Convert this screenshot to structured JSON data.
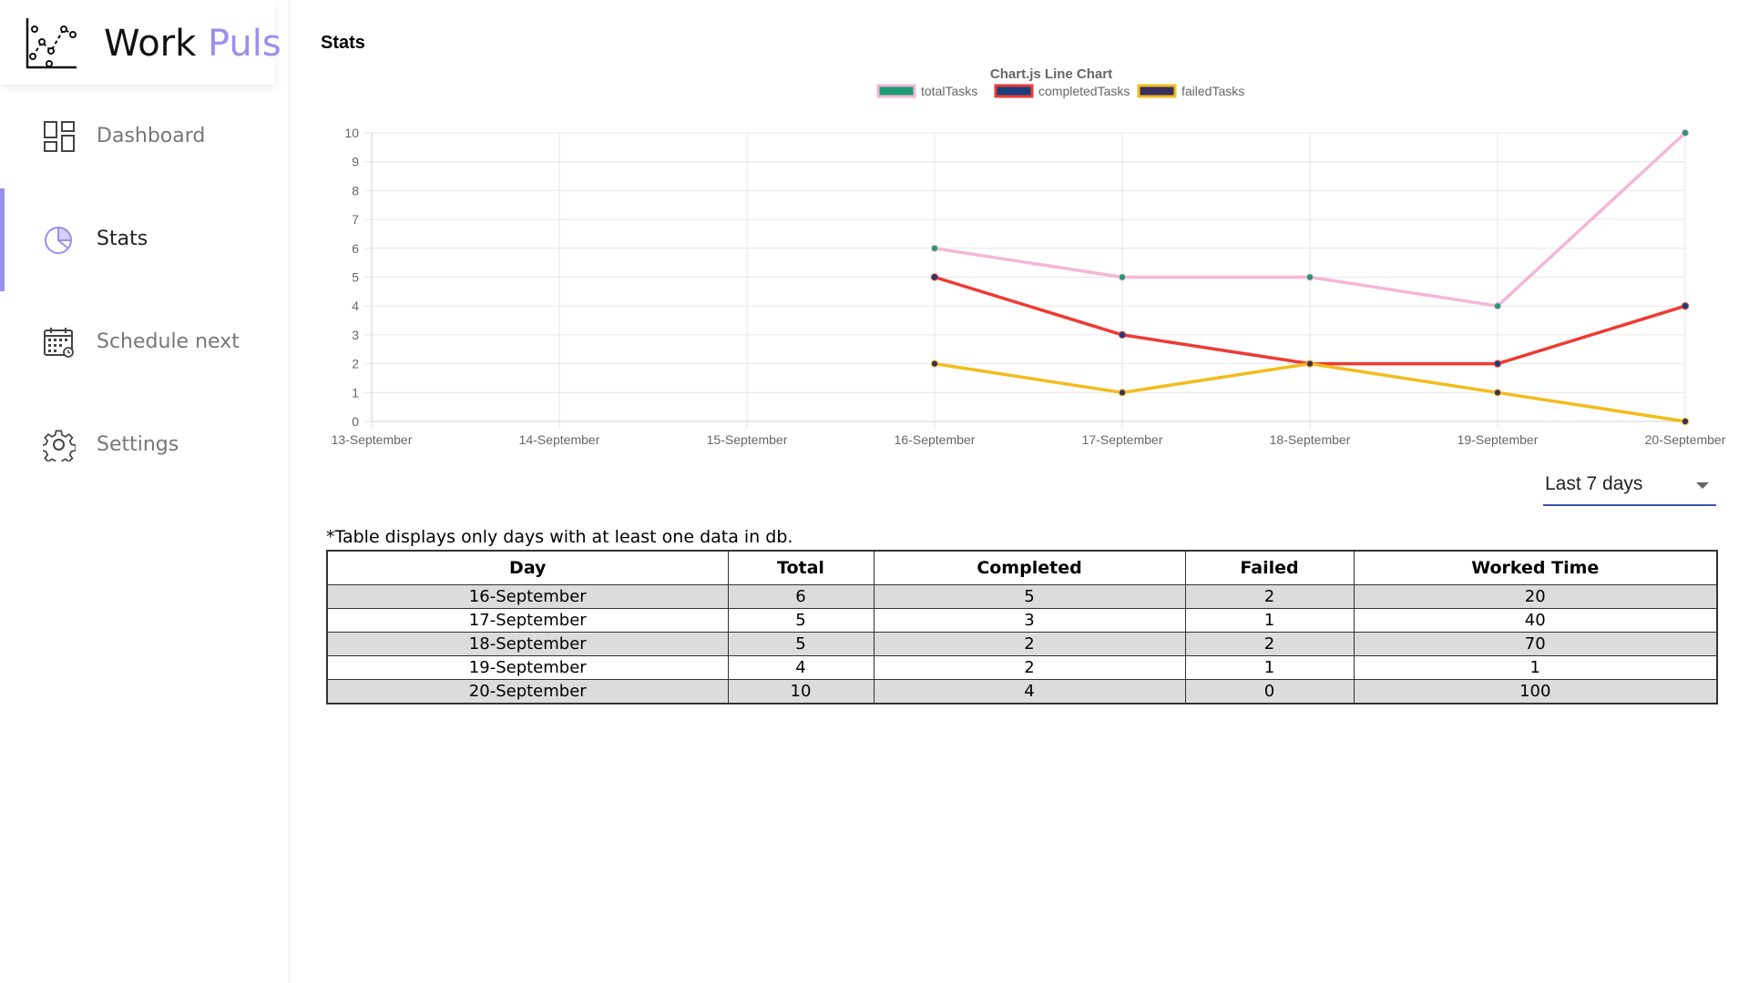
{
  "brand": {
    "name_part1": "Work ",
    "name_part2": "Puls",
    "accent_color": "#9a8ff0"
  },
  "sidebar": {
    "items": [
      {
        "label": "Dashboard",
        "icon": "dashboard-icon",
        "active": false
      },
      {
        "label": "Stats",
        "icon": "pie-chart-icon",
        "active": true
      },
      {
        "label": "Schedule next",
        "icon": "calendar-icon",
        "active": false
      },
      {
        "label": "Settings",
        "icon": "gear-icon",
        "active": false
      }
    ]
  },
  "main": {
    "title": "Stats",
    "range_select": {
      "value": "Last 7 days"
    },
    "table_note": "*Table displays only days with at least one data in db.",
    "table": {
      "headers": [
        "Day",
        "Total",
        "Completed",
        "Failed",
        "Worked Time"
      ],
      "rows": [
        [
          "16-September",
          "6",
          "5",
          "2",
          "20"
        ],
        [
          "17-September",
          "5",
          "3",
          "1",
          "40"
        ],
        [
          "18-September",
          "5",
          "2",
          "2",
          "70"
        ],
        [
          "19-September",
          "4",
          "2",
          "1",
          "1"
        ],
        [
          "20-September",
          "10",
          "4",
          "0",
          "100"
        ]
      ]
    }
  },
  "chart_data": {
    "type": "line",
    "title": "Chart.js Line Chart",
    "x": [
      "13-September",
      "14-September",
      "15-September",
      "16-September",
      "17-September",
      "18-September",
      "19-September",
      "20-September"
    ],
    "ylim": [
      0,
      10
    ],
    "yticks": [
      0,
      1,
      2,
      3,
      4,
      5,
      6,
      7,
      8,
      9,
      10
    ],
    "grid": true,
    "legend": "top-center",
    "series": [
      {
        "name": "totalTasks",
        "values": [
          null,
          null,
          null,
          6,
          5,
          5,
          4,
          10
        ],
        "line_color": "#f4b6d8",
        "point_color": "#1f9a72",
        "legend_fill": "#1f9a72",
        "legend_border": "#f4b6d8"
      },
      {
        "name": "completedTasks",
        "values": [
          null,
          null,
          null,
          5,
          3,
          2,
          2,
          4
        ],
        "line_color": "#ee3a34",
        "point_color": "#1a3f7a",
        "legend_fill": "#1a3f7a",
        "legend_border": "#ee3a34"
      },
      {
        "name": "failedTasks",
        "values": [
          null,
          null,
          null,
          2,
          1,
          2,
          1,
          0
        ],
        "line_color": "#f1bd1b",
        "point_color": "#3a2f5a",
        "legend_fill": "#3a2f5a",
        "legend_border": "#f1bd1b"
      }
    ]
  }
}
